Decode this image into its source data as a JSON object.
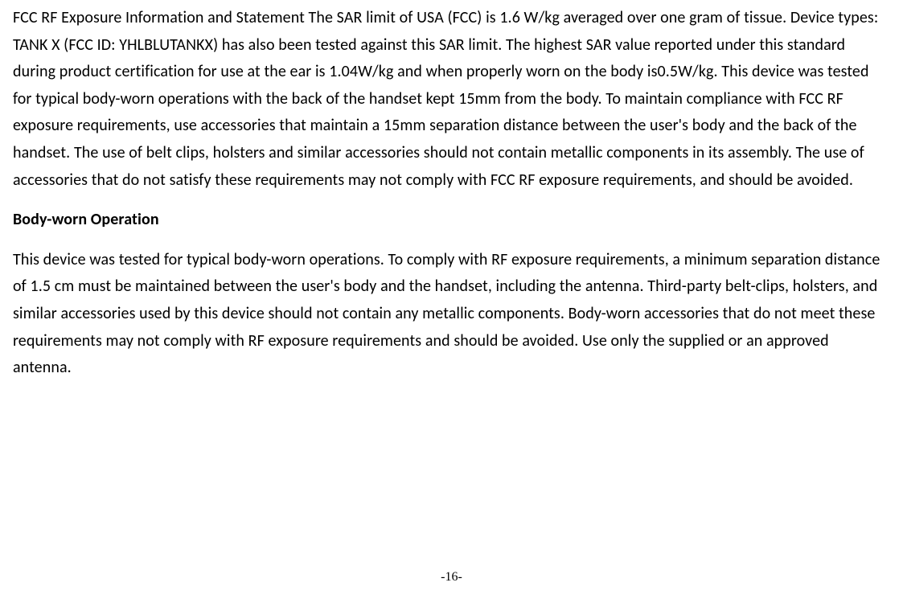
{
  "document": {
    "paragraph1": "FCC RF Exposure Information and Statement The SAR limit of USA (FCC) is 1.6 W/kg averaged over one gram of tissue. Device types: TANK X (FCC ID: YHLBLUTANKX) has also been tested against this SAR limit. The highest SAR value reported under this standard during product certification for use at the ear is 1.04W/kg and when properly worn on the body is0.5W/kg. This device was tested for typical body-worn operations with the back of the handset kept 15mm from the body. To maintain compliance with FCC RF exposure requirements, use accessories that maintain a 15mm  separation distance between the user's body and the back of the handset. The use of belt clips, holsters and similar accessories should not contain metallic components in its assembly. The use of accessories that do not satisfy these requirements may not comply with FCC RF exposure requirements, and should be avoided.",
    "heading1": "Body-worn Operation",
    "paragraph2": "This device was tested for typical body-worn operations. To comply with RF exposure requirements, a minimum separation distance of 1.5 cm must be maintained between the user's body and the handset, including the antenna. Third-party belt-clips, holsters, and similar accessories used by this device should not contain any metallic components. Body-worn accessories that do not meet these requirements may not comply with RF exposure requirements and should be avoided. Use only the supplied or an approved antenna.",
    "pageNumber": "-16-"
  },
  "styles": {
    "background_color": "#ffffff",
    "text_color": "#000000",
    "font_family": "Calibri",
    "body_fontsize": 20,
    "line_height": 1.68,
    "page_number_fontsize": 16,
    "page_number_font": "Times New Roman"
  }
}
